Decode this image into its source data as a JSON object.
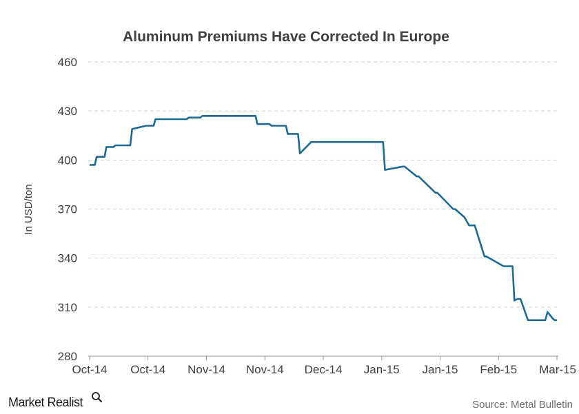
{
  "chart_data": {
    "type": "line",
    "title": "Aluminum Premiums Have Corrected In Europe",
    "ylabel": "In USD/ton",
    "ylim": [
      280,
      460
    ],
    "yticks": [
      280,
      310,
      340,
      370,
      400,
      430,
      460
    ],
    "xlim": [
      0,
      100
    ],
    "x_tick_labels": [
      "Oct-14",
      "Oct-14",
      "Nov-14",
      "Nov-14",
      "Dec-14",
      "Jan-15",
      "Jan-15",
      "Feb-15",
      "Mar-15"
    ],
    "grid": true,
    "series": [
      {
        "color": "#1f6a93",
        "x": [
          0,
          1.1,
          1.5,
          3.2,
          3.6,
          5.1,
          5.5,
          8.7,
          9.1,
          12.1,
          12.6,
          13.7,
          14.1,
          20.8,
          21.2,
          23.7,
          24.1,
          25.2,
          25.6,
          30,
          30.4,
          35.5,
          35.9,
          38.5,
          38.9,
          42,
          42.4,
          44.6,
          45,
          47.4,
          47.8,
          52.7,
          53.1,
          62.8,
          63.2,
          67,
          67.4,
          70,
          70.4,
          74,
          74.4,
          77.8,
          78.2,
          80.2,
          80.6,
          81.2,
          82.4,
          84.5,
          84.9,
          88,
          88.6,
          90.5,
          90.9,
          91.5,
          92.2,
          93.8,
          94.3,
          97.5,
          98,
          99.1,
          99.5,
          100
        ],
        "y": [
          397,
          397,
          402,
          402,
          408,
          408,
          409,
          409,
          419,
          421,
          421,
          421,
          425,
          425,
          426,
          426,
          427,
          427,
          427,
          427,
          427,
          427,
          422,
          422,
          421,
          421,
          416,
          416,
          404,
          411,
          411,
          411,
          411,
          411,
          394,
          396,
          396,
          390,
          390,
          380,
          380,
          370,
          370,
          365,
          363,
          360,
          360,
          341,
          341,
          336,
          335,
          335,
          314,
          315,
          315,
          302,
          302,
          302,
          307,
          303,
          302,
          302
        ]
      }
    ]
  },
  "footer": {
    "brand": "Market Realist",
    "source": "Source:  Metal Bulletin"
  }
}
